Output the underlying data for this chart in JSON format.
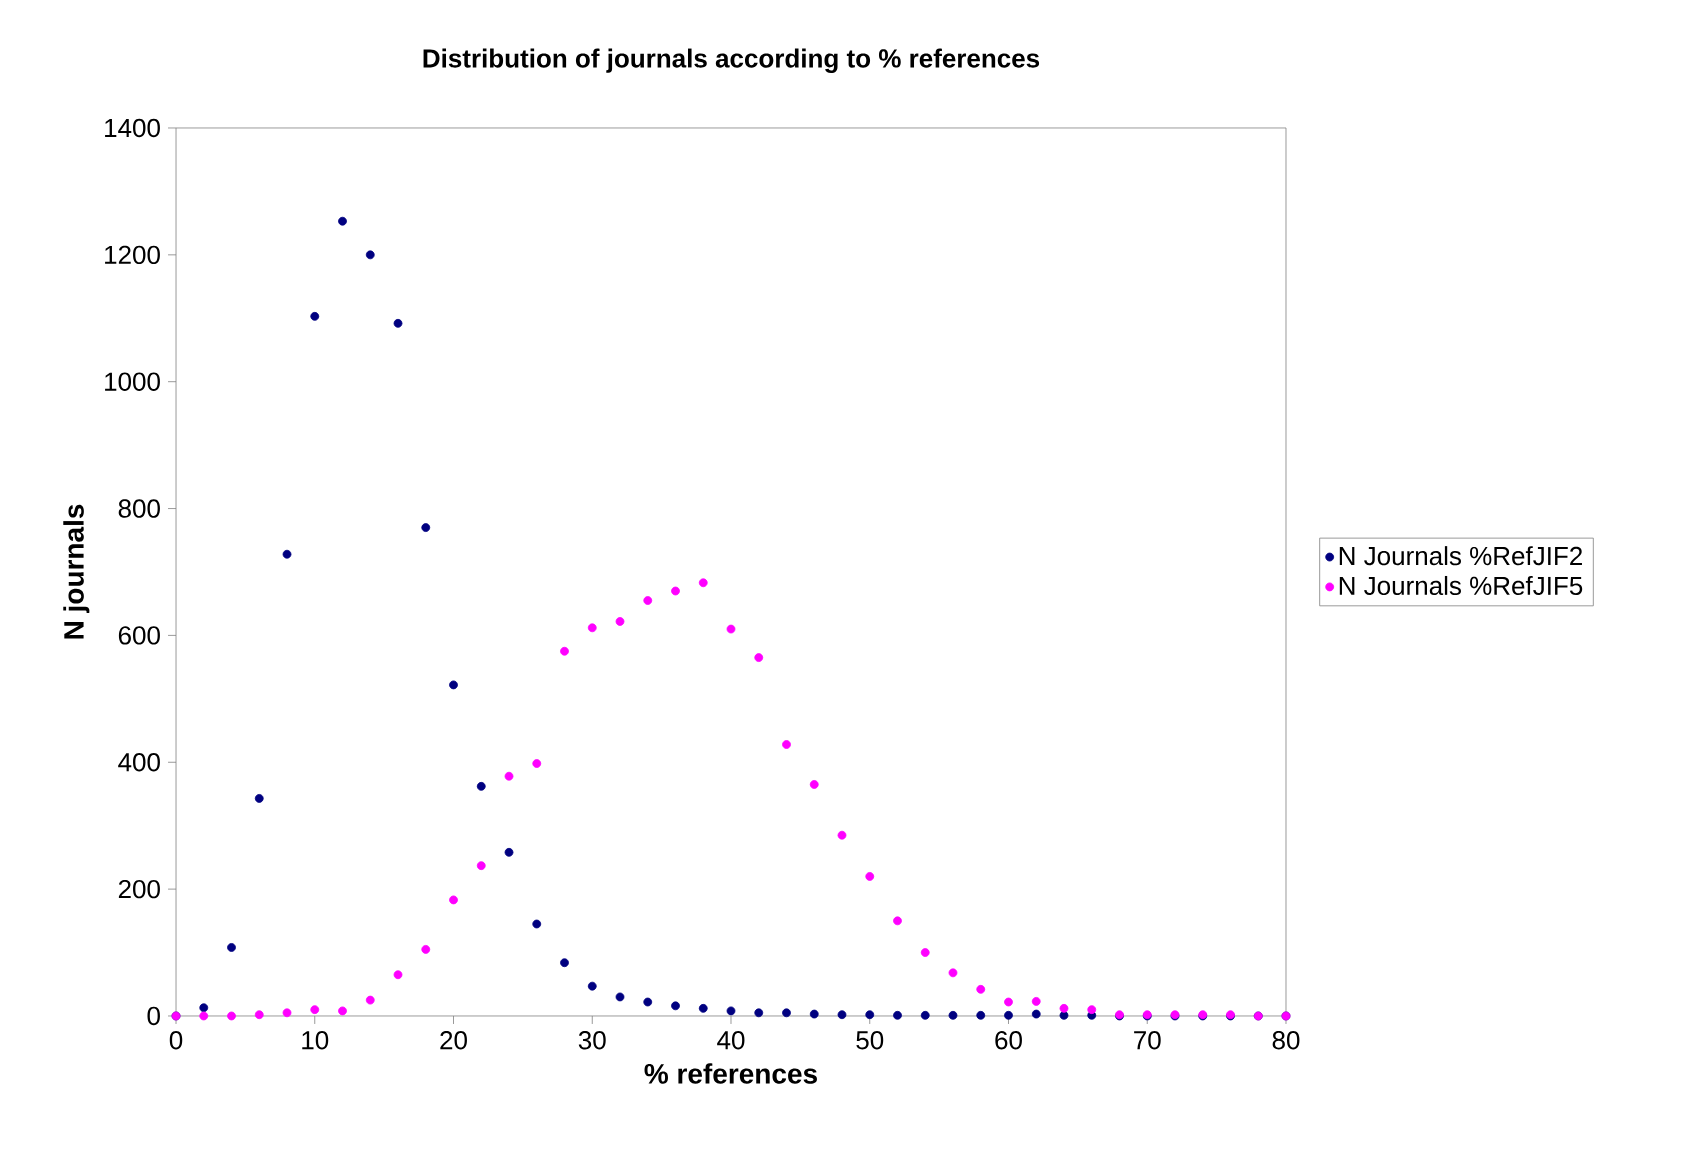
{
  "chart_data": {
    "type": "scatter",
    "title": "Distribution of journals according to % references",
    "xlabel": "% references",
    "ylabel": "N journals",
    "x": [
      0,
      2,
      4,
      6,
      8,
      10,
      12,
      14,
      16,
      18,
      20,
      22,
      24,
      26,
      28,
      30,
      32,
      34,
      36,
      38,
      40,
      42,
      44,
      46,
      48,
      50,
      52,
      54,
      56,
      58,
      60,
      62,
      64,
      66,
      68,
      70,
      72,
      74,
      76,
      78,
      80
    ],
    "series": [
      {
        "name": "N Journals %RefJIF2",
        "color": "#000080",
        "values": [
          0,
          13,
          108,
          343,
          728,
          1103,
          1253,
          1200,
          1092,
          770,
          522,
          362,
          258,
          145,
          84,
          47,
          30,
          22,
          16,
          12,
          8,
          5,
          5,
          3,
          2,
          2,
          1,
          1,
          1,
          1,
          1,
          3,
          1,
          1,
          0,
          0,
          0,
          0,
          0,
          0,
          0
        ]
      },
      {
        "name": "N Journals %RefJIF5",
        "color": "#ff00ff",
        "values": [
          0,
          0,
          0,
          2,
          5,
          10,
          8,
          25,
          65,
          105,
          183,
          237,
          378,
          398,
          575,
          612,
          622,
          655,
          670,
          683,
          610,
          565,
          428,
          365,
          285,
          220,
          150,
          100,
          68,
          42,
          22,
          23,
          12,
          10,
          2,
          2,
          2,
          2,
          2,
          0,
          0
        ]
      }
    ],
    "xlim": [
      0,
      80
    ],
    "xticks": [
      0,
      10,
      20,
      30,
      40,
      50,
      60,
      70,
      80
    ],
    "ylim": [
      0,
      1400
    ],
    "yticks": [
      0,
      200,
      400,
      600,
      800,
      1000,
      1200,
      1400
    ],
    "grid": false,
    "legend": "right",
    "marker": "circle"
  }
}
